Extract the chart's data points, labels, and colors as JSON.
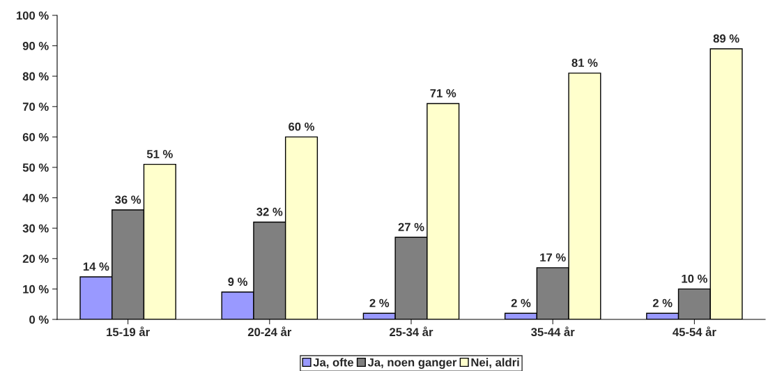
{
  "chart_data": {
    "type": "bar",
    "categories": [
      "15-19 år",
      "20-24 år",
      "25-34 år",
      "35-44 år",
      "45-54 år"
    ],
    "series": [
      {
        "name": "Ja, ofte",
        "color": "#9999ff",
        "values": [
          14,
          9,
          2,
          2,
          2
        ],
        "value_labels": [
          "14 %",
          "9 %",
          "2 %",
          "2 %",
          "2 %"
        ]
      },
      {
        "name": "Ja, noen ganger",
        "color": "#808080",
        "values": [
          36,
          32,
          27,
          17,
          10
        ],
        "value_labels": [
          "36 %",
          "32 %",
          "27 %",
          "17 %",
          "10 %"
        ]
      },
      {
        "name": "Nei, aldri",
        "color": "#ffffcc",
        "values": [
          51,
          60,
          71,
          81,
          89
        ],
        "value_labels": [
          "51 %",
          "60 %",
          "71 %",
          "81 %",
          "89 %"
        ]
      }
    ],
    "ylim": [
      0,
      100
    ],
    "yticks": [
      {
        "value": 0,
        "label": "0 %"
      },
      {
        "value": 10,
        "label": "10 %"
      },
      {
        "value": 20,
        "label": "20 %"
      },
      {
        "value": 30,
        "label": "30 %"
      },
      {
        "value": 40,
        "label": "40 %"
      },
      {
        "value": 50,
        "label": "50 %"
      },
      {
        "value": 60,
        "label": "60 %"
      },
      {
        "value": 70,
        "label": "70 %"
      },
      {
        "value": 80,
        "label": "80 %"
      },
      {
        "value": 90,
        "label": "90 %"
      },
      {
        "value": 100,
        "label": "100 %"
      }
    ],
    "grid": false,
    "legend": "bottom"
  }
}
